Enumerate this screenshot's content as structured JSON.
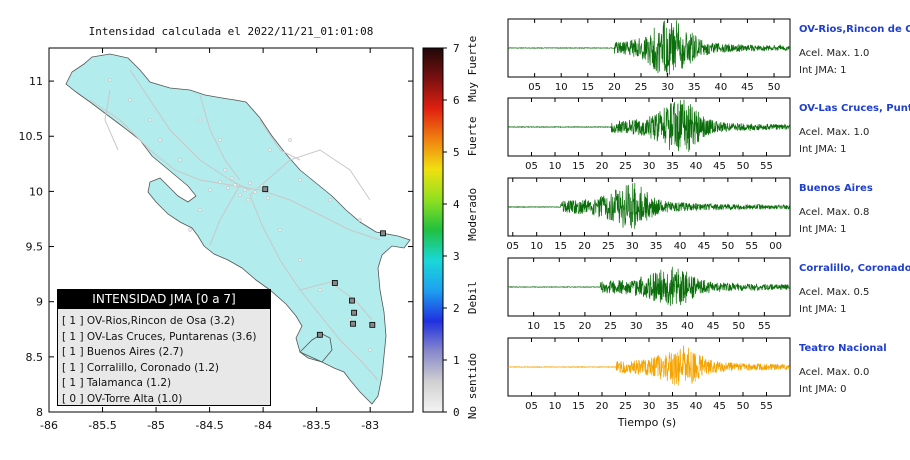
{
  "map": {
    "title": "Intensidad calculada el 2022/11/21_01:01:08",
    "lon_range": [
      -86,
      -82.6
    ],
    "lat_range": [
      8,
      11.3
    ],
    "xticks": [
      "-86",
      "-85.5",
      "-85",
      "-84.5",
      "-84",
      "-83.5",
      "-83"
    ],
    "xtick_values": [
      -86,
      -85.5,
      -85,
      -84.5,
      -84,
      -83.5,
      -83
    ],
    "yticks": [
      "8",
      "8.5",
      "9",
      "9.5",
      "10",
      "10.5",
      "11"
    ],
    "ytick_values": [
      8,
      8.5,
      9,
      9.5,
      10,
      10.5,
      11
    ],
    "land_color": "#b3ecec",
    "stations": [
      {
        "name": "OV-Rios,Rincon de Osa",
        "lon": -83.47,
        "lat": 8.7,
        "color": "#888888"
      },
      {
        "name": "OV-Las Cruces, Puntarenas",
        "lon": -82.98,
        "lat": 8.79,
        "color": "#888888"
      },
      {
        "name": "Buenos Aires",
        "lon": -83.33,
        "lat": 9.17,
        "color": "#888888"
      },
      {
        "name": "Corralillo, Coronado",
        "lon": -83.98,
        "lat": 10.02,
        "color": "#888888"
      },
      {
        "name": "Talamanca",
        "lon": -83.15,
        "lat": 8.9,
        "color": "#888888"
      },
      {
        "name": "OV-Torre Alta",
        "lon": -82.88,
        "lat": 9.62,
        "color": "#888888"
      },
      {
        "name": "",
        "lon": -83.17,
        "lat": 9.01,
        "color": "#888888"
      },
      {
        "name": "",
        "lon": -83.16,
        "lat": 8.8,
        "color": "#888888"
      }
    ]
  },
  "colorbar": {
    "ticks": [
      "0",
      "1",
      "2",
      "3",
      "4",
      "5",
      "6",
      "7"
    ],
    "categories": [
      "No sentido",
      "Debil",
      "Moderado",
      "Fuerte",
      "Muy Fuerte"
    ],
    "category_values": [
      0.5,
      2.2,
      3.8,
      5.3,
      6.6
    ],
    "stops": [
      "#f4f4f4",
      "#d0d0d0",
      "#8888cc",
      "#2030e0",
      "#1ea0f0",
      "#19d8d8",
      "#20c040",
      "#90e020",
      "#f0e010",
      "#f08010",
      "#e02010",
      "#7a1010",
      "#200808"
    ]
  },
  "legend": {
    "title": "INTENSIDAD JMA [0 a 7]",
    "rows": [
      {
        "jma": "[ 1 ]",
        "label": "OV-Rios,Rincon de Osa (3.2)"
      },
      {
        "jma": "[ 1 ]",
        "label": "OV-Las Cruces, Puntarenas (3.6)"
      },
      {
        "jma": "[ 1 ]",
        "label": "Buenos Aires (2.7)"
      },
      {
        "jma": "[ 1 ]",
        "label": "Corralillo, Coronado (1.2)"
      },
      {
        "jma": "[ 1 ]",
        "label": "Talamanca (1.2)"
      },
      {
        "jma": "[ 0 ]",
        "label": "OV-Torre Alta (1.0)"
      }
    ]
  },
  "seismograms": {
    "xlabel": "Tiempo (s)",
    "panels": [
      {
        "station": "OV-Rios,Rincon de Osa",
        "acel": "Acel. Max. 1.0",
        "jma": "Int JMA: 1",
        "color": "#0a6e0a",
        "ticks": [
          "05",
          "10",
          "15",
          "20",
          "25",
          "30",
          "35",
          "40",
          "45",
          "50"
        ],
        "start_s": 0,
        "end_s": 53,
        "onset_s": 20,
        "peak_s": 30.5,
        "peak_amp": 1.0
      },
      {
        "station": "OV-Las Cruces, Puntarenas",
        "acel": "Acel. Max. 1.0",
        "jma": "Int JMA: 1",
        "color": "#0a6e0a",
        "ticks": [
          "05",
          "10",
          "15",
          "20",
          "25",
          "30",
          "35",
          "40",
          "45",
          "50",
          "55"
        ],
        "start_s": 0,
        "end_s": 60,
        "onset_s": 22,
        "peak_s": 36.5,
        "peak_amp": 1.0
      },
      {
        "station": "Buenos Aires",
        "acel": "Acel. Max. 0.8",
        "jma": "Int JMA: 1",
        "color": "#0a6e0a",
        "ticks": [
          "05",
          "10",
          "15",
          "20",
          "25",
          "30",
          "35",
          "40",
          "45",
          "50",
          "55",
          "00"
        ],
        "start_s": 4,
        "end_s": 63,
        "onset_s": 15,
        "peak_s": 29.5,
        "peak_amp": 0.8
      },
      {
        "station": "Corralillo, Coronado",
        "acel": "Acel. Max. 0.5",
        "jma": "Int JMA: 1",
        "color": "#0a6e0a",
        "ticks": [
          "10",
          "15",
          "20",
          "25",
          "30",
          "35",
          "40",
          "45",
          "50",
          "55"
        ],
        "start_s": 5,
        "end_s": 60,
        "onset_s": 23,
        "peak_s": 37,
        "peak_amp": 0.5
      },
      {
        "station": "Teatro Nacional",
        "acel": "Acel. Max. 0.0",
        "jma": "Int JMA: 0",
        "color": "#f5a300",
        "ticks": [
          "05",
          "10",
          "15",
          "20",
          "25",
          "30",
          "35",
          "40",
          "45",
          "50",
          "55"
        ],
        "start_s": 0,
        "end_s": 60,
        "onset_s": 23,
        "peak_s": 37,
        "peak_amp": 0.0
      }
    ]
  },
  "chart_data": [
    {
      "type": "scatter",
      "title": "Intensidad calculada el 2022/11/21_01:01:08",
      "xlabel": "",
      "ylabel": "",
      "xlim": [
        -86,
        -82.6
      ],
      "ylim": [
        8,
        11.3
      ],
      "series": [
        {
          "name": "",
          "x": [
            -83.47,
            -82.98,
            -83.33,
            -83.98,
            -83.15,
            -82.88
          ],
          "y": [
            8.7,
            8.79,
            9.17,
            10.02,
            8.9,
            9.62
          ]
        }
      ],
      "legend_title": "INTENSIDAD JMA [0 a 7]",
      "legend_entries": [
        "OV-Rios,Rincon de Osa (3.2)",
        "OV-Las Cruces, Puntarenas (3.6)",
        "Buenos Aires (2.7)",
        "Corralillo, Coronado (1.2)",
        "Talamanca (1.2)",
        "OV-Torre Alta (1.0)"
      ],
      "jma_values": [
        1,
        1,
        1,
        1,
        1,
        0
      ],
      "colorbar_range": [
        0,
        7
      ]
    },
    {
      "type": "line",
      "title": "",
      "xlabel": "Tiempo (s)",
      "ylabel": "",
      "series": [
        {
          "name": "OV-Rios,Rincon de Osa",
          "peak_acceleration": 1.0,
          "jma": 1
        },
        {
          "name": "OV-Las Cruces, Puntarenas",
          "peak_acceleration": 1.0,
          "jma": 1
        },
        {
          "name": "Buenos Aires",
          "peak_acceleration": 0.8,
          "jma": 1
        },
        {
          "name": "Corralillo, Coronado",
          "peak_acceleration": 0.5,
          "jma": 1
        },
        {
          "name": "Teatro Nacional",
          "peak_acceleration": 0.0,
          "jma": 0
        }
      ]
    }
  ]
}
